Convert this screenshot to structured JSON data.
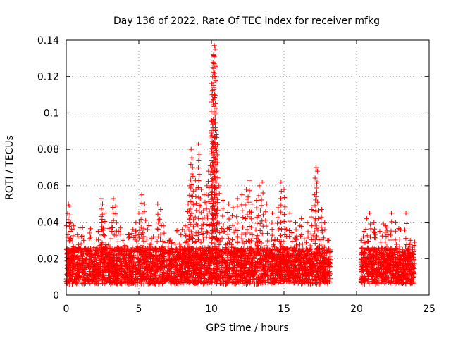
{
  "chart_data": {
    "type": "scatter",
    "title": "Day 136 of 2022, Rate Of TEC Index for receiver mfkg",
    "xlabel": "GPS time / hours",
    "ylabel": "ROTI / TECUs",
    "xlim": [
      0,
      25
    ],
    "ylim": [
      0,
      0.14
    ],
    "xticks": [
      0,
      5,
      10,
      15,
      20,
      25
    ],
    "xtick_labels": [
      "0",
      "5",
      "10",
      "15",
      "20",
      "25"
    ],
    "yticks": [
      0,
      0.02,
      0.04,
      0.06,
      0.08,
      0.1,
      0.12,
      0.14
    ],
    "ytick_labels": [
      "0",
      "0.02",
      "0.04",
      "0.06",
      "0.08",
      "0.1",
      "0.12",
      "0.14"
    ],
    "grid": true,
    "marker": "plus",
    "color": "#ff0000",
    "coverage": [
      [
        0.0,
        18.2
      ],
      [
        20.3,
        24.0
      ]
    ],
    "series": [
      {
        "name": "ROTI",
        "points": [
          [
            0.15,
            0.05
          ],
          [
            0.2,
            0.049
          ],
          [
            0.3,
            0.04
          ],
          [
            0.5,
            0.038
          ],
          [
            0.8,
            0.032
          ],
          [
            1.2,
            0.03
          ],
          [
            1.6,
            0.031
          ],
          [
            2.2,
            0.035
          ],
          [
            2.4,
            0.053
          ],
          [
            2.5,
            0.05
          ],
          [
            2.6,
            0.045
          ],
          [
            3.1,
            0.04
          ],
          [
            3.25,
            0.053
          ],
          [
            3.4,
            0.049
          ],
          [
            3.6,
            0.035
          ],
          [
            3.9,
            0.03
          ],
          [
            4.3,
            0.033
          ],
          [
            4.6,
            0.036
          ],
          [
            4.8,
            0.04
          ],
          [
            5.0,
            0.045
          ],
          [
            5.2,
            0.055
          ],
          [
            5.4,
            0.05
          ],
          [
            5.6,
            0.036
          ],
          [
            6.0,
            0.032
          ],
          [
            6.3,
            0.05
          ],
          [
            6.5,
            0.047
          ],
          [
            6.7,
            0.038
          ],
          [
            7.1,
            0.03
          ],
          [
            7.5,
            0.028
          ],
          [
            7.9,
            0.033
          ],
          [
            8.2,
            0.038
          ],
          [
            8.4,
            0.05
          ],
          [
            8.5,
            0.06
          ],
          [
            8.6,
            0.08
          ],
          [
            8.7,
            0.07
          ],
          [
            8.9,
            0.063
          ],
          [
            9.1,
            0.083
          ],
          [
            9.3,
            0.058
          ],
          [
            9.5,
            0.055
          ],
          [
            9.7,
            0.06
          ],
          [
            9.8,
            0.068
          ],
          [
            10.0,
            0.096
          ],
          [
            10.05,
            0.11
          ],
          [
            10.1,
            0.125
          ],
          [
            10.15,
            0.132
          ],
          [
            10.2,
            0.137
          ],
          [
            10.25,
            0.135
          ],
          [
            10.3,
            0.1
          ],
          [
            10.35,
            0.088
          ],
          [
            10.4,
            0.077
          ],
          [
            10.5,
            0.06
          ],
          [
            10.8,
            0.052
          ],
          [
            11.2,
            0.05
          ],
          [
            11.5,
            0.048
          ],
          [
            11.8,
            0.053
          ],
          [
            12.1,
            0.055
          ],
          [
            12.4,
            0.058
          ],
          [
            12.6,
            0.063
          ],
          [
            12.8,
            0.05
          ],
          [
            13.1,
            0.052
          ],
          [
            13.3,
            0.06
          ],
          [
            13.5,
            0.062
          ],
          [
            13.8,
            0.05
          ],
          [
            14.2,
            0.045
          ],
          [
            14.6,
            0.048
          ],
          [
            14.8,
            0.062
          ],
          [
            15.0,
            0.058
          ],
          [
            15.4,
            0.045
          ],
          [
            15.8,
            0.04
          ],
          [
            16.2,
            0.042
          ],
          [
            16.6,
            0.04
          ],
          [
            16.9,
            0.047
          ],
          [
            17.1,
            0.055
          ],
          [
            17.2,
            0.07
          ],
          [
            17.3,
            0.068
          ],
          [
            17.6,
            0.047
          ],
          [
            17.8,
            0.04
          ],
          [
            18.0,
            0.03
          ],
          [
            20.3,
            0.03
          ],
          [
            20.5,
            0.035
          ],
          [
            20.7,
            0.042
          ],
          [
            20.9,
            0.045
          ],
          [
            21.2,
            0.04
          ],
          [
            21.6,
            0.035
          ],
          [
            22.0,
            0.038
          ],
          [
            22.4,
            0.045
          ],
          [
            22.7,
            0.04
          ],
          [
            23.0,
            0.036
          ],
          [
            23.4,
            0.045
          ],
          [
            23.7,
            0.03
          ],
          [
            24.0,
            0.029
          ]
        ]
      }
    ]
  }
}
